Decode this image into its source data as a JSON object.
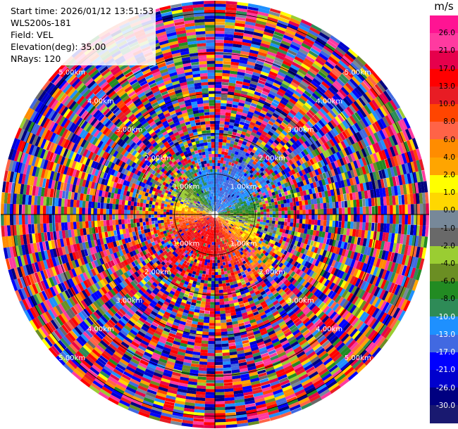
{
  "header": {
    "start_time": "Start time: 2026/01/12 13:51:53",
    "instrument": "WLS200s-181",
    "field": "Field: VEL",
    "elevation": "Elevation(deg): 35.00",
    "nrays": "NRays: 120"
  },
  "colorbar": {
    "unit": "m/s",
    "ticks": [
      "26.0",
      "21.0",
      "17.0",
      "13.0",
      "10.0",
      "8.0",
      "6.0",
      "4.0",
      "2.0",
      "1.0",
      "0.0",
      "-1.0",
      "-2.0",
      "-4.0",
      "-6.0",
      "-8.0",
      "-10.0",
      "-13.0",
      "-17.0",
      "-21.0",
      "-26.0",
      "-30.0"
    ],
    "colors": [
      "#ff1493",
      "#ff3aa0",
      "#e6004c",
      "#ff0000",
      "#e81c24",
      "#ff4500",
      "#ff6347",
      "#ff8c00",
      "#ffa500",
      "#ffff00",
      "#ffd700",
      "#778899",
      "#696969",
      "#9acd32",
      "#6b8e23",
      "#228b22",
      "#2e8b57",
      "#1e90ff",
      "#4169e1",
      "#0000ff",
      "#0000cd",
      "#000080",
      "#191970"
    ]
  },
  "chart_data": {
    "type": "heatmap",
    "title": "",
    "field": "VEL",
    "unit": "m/s",
    "nrays": 120,
    "elevation_deg": 35.0,
    "range_ring_labels": [
      "1.00km",
      "2.00km",
      "3.00km",
      "4.00km",
      "5.00km"
    ],
    "range_max_km": 5.3,
    "value_range": [
      -30.0,
      26.0
    ],
    "description_values": {
      "near_field_pattern": "coherent velocities within ~2 km: positive (red/orange) toward south/southwest, negative (blue) toward north/northeast, green to the west, yellow toward west-southwest",
      "far_field_pattern": "noise-dominated random velocities beyond ~2 km"
    }
  }
}
